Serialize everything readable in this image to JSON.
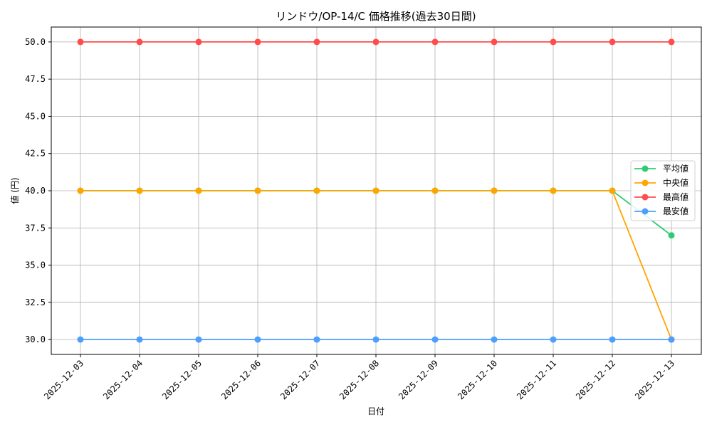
{
  "chart_data": {
    "type": "line",
    "title": "リンドウ/OP-14/C 価格推移(過去30日間)",
    "xlabel": "日付",
    "ylabel": "値 (円)",
    "categories": [
      "2025-12-03",
      "2025-12-04",
      "2025-12-05",
      "2025-12-06",
      "2025-12-07",
      "2025-12-08",
      "2025-12-09",
      "2025-12-10",
      "2025-12-11",
      "2025-12-12",
      "2025-12-13"
    ],
    "ylim": [
      29.0,
      51.0
    ],
    "yticks": [
      "30.0",
      "32.5",
      "35.0",
      "37.5",
      "40.0",
      "42.5",
      "45.0",
      "47.5",
      "50.0"
    ],
    "ytick_values": [
      30.0,
      32.5,
      35.0,
      37.5,
      40.0,
      42.5,
      45.0,
      47.5,
      50.0
    ],
    "grid": true,
    "legend_position": "center right",
    "series": [
      {
        "name": "平均値",
        "color": "#2ecc71",
        "values": [
          40,
          40,
          40,
          40,
          40,
          40,
          40,
          40,
          40,
          40,
          37
        ]
      },
      {
        "name": "中央値",
        "color": "#ffa500",
        "values": [
          40,
          40,
          40,
          40,
          40,
          40,
          40,
          40,
          40,
          40,
          30
        ]
      },
      {
        "name": "最高値",
        "color": "#ff4d4d",
        "values": [
          50,
          50,
          50,
          50,
          50,
          50,
          50,
          50,
          50,
          50,
          50
        ]
      },
      {
        "name": "最安値",
        "color": "#4d9fff",
        "values": [
          30,
          30,
          30,
          30,
          30,
          30,
          30,
          30,
          30,
          30,
          30
        ]
      }
    ]
  }
}
